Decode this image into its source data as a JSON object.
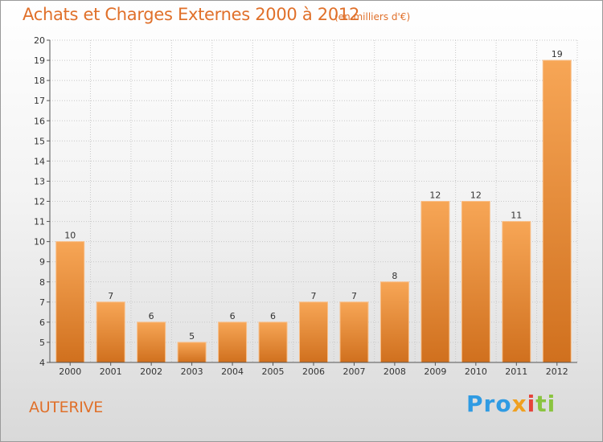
{
  "title": "Achats et Charges Externes 2000 à 2012",
  "unit_label": "(en milliers d'€)",
  "location": "AUTERIVE",
  "brand": {
    "parts": [
      "Pro",
      "x",
      "i",
      "ti"
    ]
  },
  "colors": {
    "title": "#e0702a",
    "bar_top": "#f7a656",
    "bar_bottom": "#d0701e",
    "grid": "#c8c8c8"
  },
  "chart_data": {
    "type": "bar",
    "title": "Achats et Charges Externes 2000 à 2012",
    "subtitle": "(en milliers d'€)",
    "categories": [
      "2000",
      "2001",
      "2002",
      "2003",
      "2004",
      "2005",
      "2006",
      "2007",
      "2008",
      "2009",
      "2010",
      "2011",
      "2012"
    ],
    "values": [
      10,
      7,
      6,
      5,
      6,
      6,
      7,
      7,
      8,
      12,
      12,
      11,
      19
    ],
    "ylim": [
      4,
      20
    ],
    "yticks": [
      4,
      5,
      6,
      7,
      8,
      9,
      10,
      11,
      12,
      13,
      14,
      15,
      16,
      17,
      18,
      19,
      20
    ],
    "grid": true,
    "data_labels": true
  }
}
